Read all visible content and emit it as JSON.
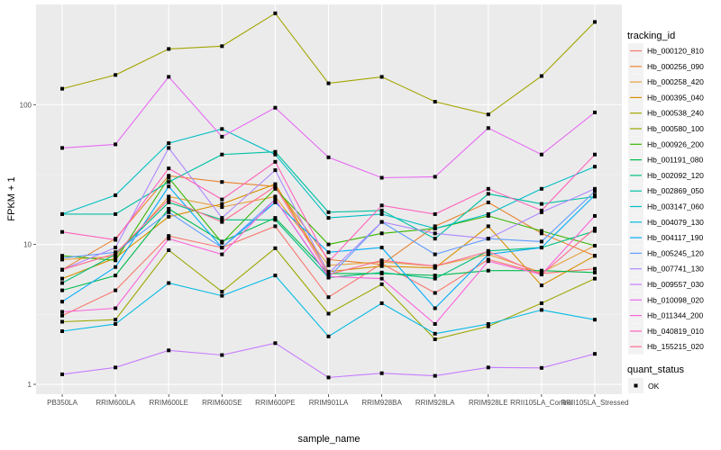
{
  "chart_data": {
    "type": "line",
    "title": "",
    "xlabel": "sample_name",
    "ylabel": "FPKM + 1",
    "yscale": "log10",
    "ylim": [
      0.85,
      520
    ],
    "grid": true,
    "legend_position": "right",
    "categories": [
      "PB350LA",
      "RRIM600LA",
      "RRIM600LE",
      "RRIM600SE",
      "RRIM600PE",
      "RRIM901LA",
      "RRIM928BA",
      "RRIM928LA",
      "RRIM928LE",
      "RRII105LA_Control",
      "RRII105LA_Stressed"
    ],
    "yticks": [
      {
        "value": 1,
        "label": "1"
      },
      {
        "value": 10,
        "label": "10"
      },
      {
        "value": 100,
        "label": "100"
      }
    ],
    "legend_title": "tracking_id",
    "shape_legend_title": "quant_status",
    "shape_legend_entries": [
      "OK"
    ],
    "series": [
      {
        "name": "Hb_000120_810",
        "color": "#F8766D",
        "values": [
          3.1,
          4.7,
          11.5,
          9.5,
          13.5,
          4.2,
          7.3,
          4.5,
          7.8,
          6.2,
          6.7
        ]
      },
      {
        "name": "Hb_000256_090",
        "color": "#EA8331",
        "values": [
          6.6,
          11.0,
          31,
          28,
          26,
          7.8,
          7.2,
          13.5,
          20,
          12,
          8.3
        ]
      },
      {
        "name": "Hb_000258_420",
        "color": "#E7A33F",
        "values": [
          7.8,
          8.2,
          22,
          18.5,
          22,
          7.1,
          7.5,
          7.0,
          8.5,
          6.3,
          9.8
        ]
      },
      {
        "name": "Hb_000395_040",
        "color": "#D89000",
        "values": [
          5.7,
          8.0,
          15.8,
          19.5,
          27,
          6.4,
          7.0,
          6.8,
          13.5,
          5.1,
          8.3
        ]
      },
      {
        "name": "Hb_000538_240",
        "color": "#A3A500",
        "values": [
          130,
          163,
          250,
          262,
          450,
          142,
          158,
          105,
          85,
          160,
          390
        ]
      },
      {
        "name": "Hb_000580_100",
        "color": "#9CA700",
        "values": [
          2.8,
          2.9,
          9.1,
          4.6,
          9.4,
          3.2,
          5.2,
          2.1,
          2.6,
          3.8,
          5.7
        ]
      },
      {
        "name": "Hb_000926_200",
        "color": "#39B600",
        "values": [
          8.3,
          7.7,
          30,
          10.3,
          25,
          10,
          12,
          13,
          16,
          12.5,
          9.8
        ]
      },
      {
        "name": "Hb_001191_080",
        "color": "#00BB4E",
        "values": [
          4.7,
          6.0,
          18,
          10.5,
          15.5,
          6.2,
          6.2,
          6.0,
          6.5,
          6.5,
          6.3
        ]
      },
      {
        "name": "Hb_002092_120",
        "color": "#00BF7D",
        "values": [
          5.3,
          8.5,
          20,
          15,
          15,
          5.8,
          6.3,
          5.7,
          9.0,
          9.5,
          12.5
        ]
      },
      {
        "name": "Hb_002869_050",
        "color": "#00C1A3",
        "values": [
          16.5,
          16.5,
          28,
          44,
          46,
          17,
          17.5,
          11,
          23,
          19.5,
          22
        ]
      },
      {
        "name": "Hb_003147_060",
        "color": "#00BFC4",
        "values": [
          16.5,
          22.5,
          53,
          67,
          44,
          15.5,
          16.5,
          13,
          16.5,
          25,
          36
        ]
      },
      {
        "name": "Hb_004079_130",
        "color": "#00B9E3",
        "values": [
          2.4,
          2.7,
          5.3,
          4.3,
          6.0,
          2.2,
          3.8,
          2.3,
          2.7,
          3.4,
          2.9
        ]
      },
      {
        "name": "Hb_004117_190",
        "color": "#00ADFA",
        "values": [
          3.9,
          6.9,
          26,
          9.5,
          20,
          8.8,
          9.5,
          3.5,
          8.5,
          9.5,
          22.5
        ]
      },
      {
        "name": "Hb_005245_120",
        "color": "#619CFF",
        "values": [
          8.0,
          8.8,
          17,
          9.5,
          21,
          5.8,
          14.5,
          8.5,
          11,
          10.5,
          24
        ]
      },
      {
        "name": "Hb_007741_130",
        "color": "#AE87FF",
        "values": [
          6.6,
          9.5,
          49,
          15.5,
          34,
          6.2,
          14.5,
          12,
          11,
          17,
          25
        ]
      },
      {
        "name": "Hb_009557_030",
        "color": "#C77CFF",
        "values": [
          1.18,
          1.32,
          1.75,
          1.62,
          1.97,
          1.12,
          1.2,
          1.15,
          1.32,
          1.31,
          1.65
        ]
      },
      {
        "name": "Hb_010098_020",
        "color": "#E76BF3",
        "values": [
          49,
          52,
          158,
          59,
          95,
          42,
          30,
          30.5,
          68,
          44,
          88
        ]
      },
      {
        "name": "Hb_011344_200",
        "color": "#FA62DB",
        "values": [
          3.3,
          3.5,
          11.0,
          8.5,
          21,
          5.9,
          5.7,
          2.7,
          7.6,
          6.1,
          16
        ]
      },
      {
        "name": "Hb_040819_010",
        "color": "#FF62BC",
        "values": [
          12.3,
          10.8,
          35,
          21,
          39,
          7.5,
          19,
          16.5,
          25,
          17.5,
          44
        ]
      },
      {
        "name": "Hb_155215_020",
        "color": "#FF6C91",
        "values": [
          6.6,
          8.6,
          21,
          14.5,
          26,
          6.1,
          7.7,
          7.0,
          8.9,
          6.1,
          13
        ]
      }
    ]
  }
}
